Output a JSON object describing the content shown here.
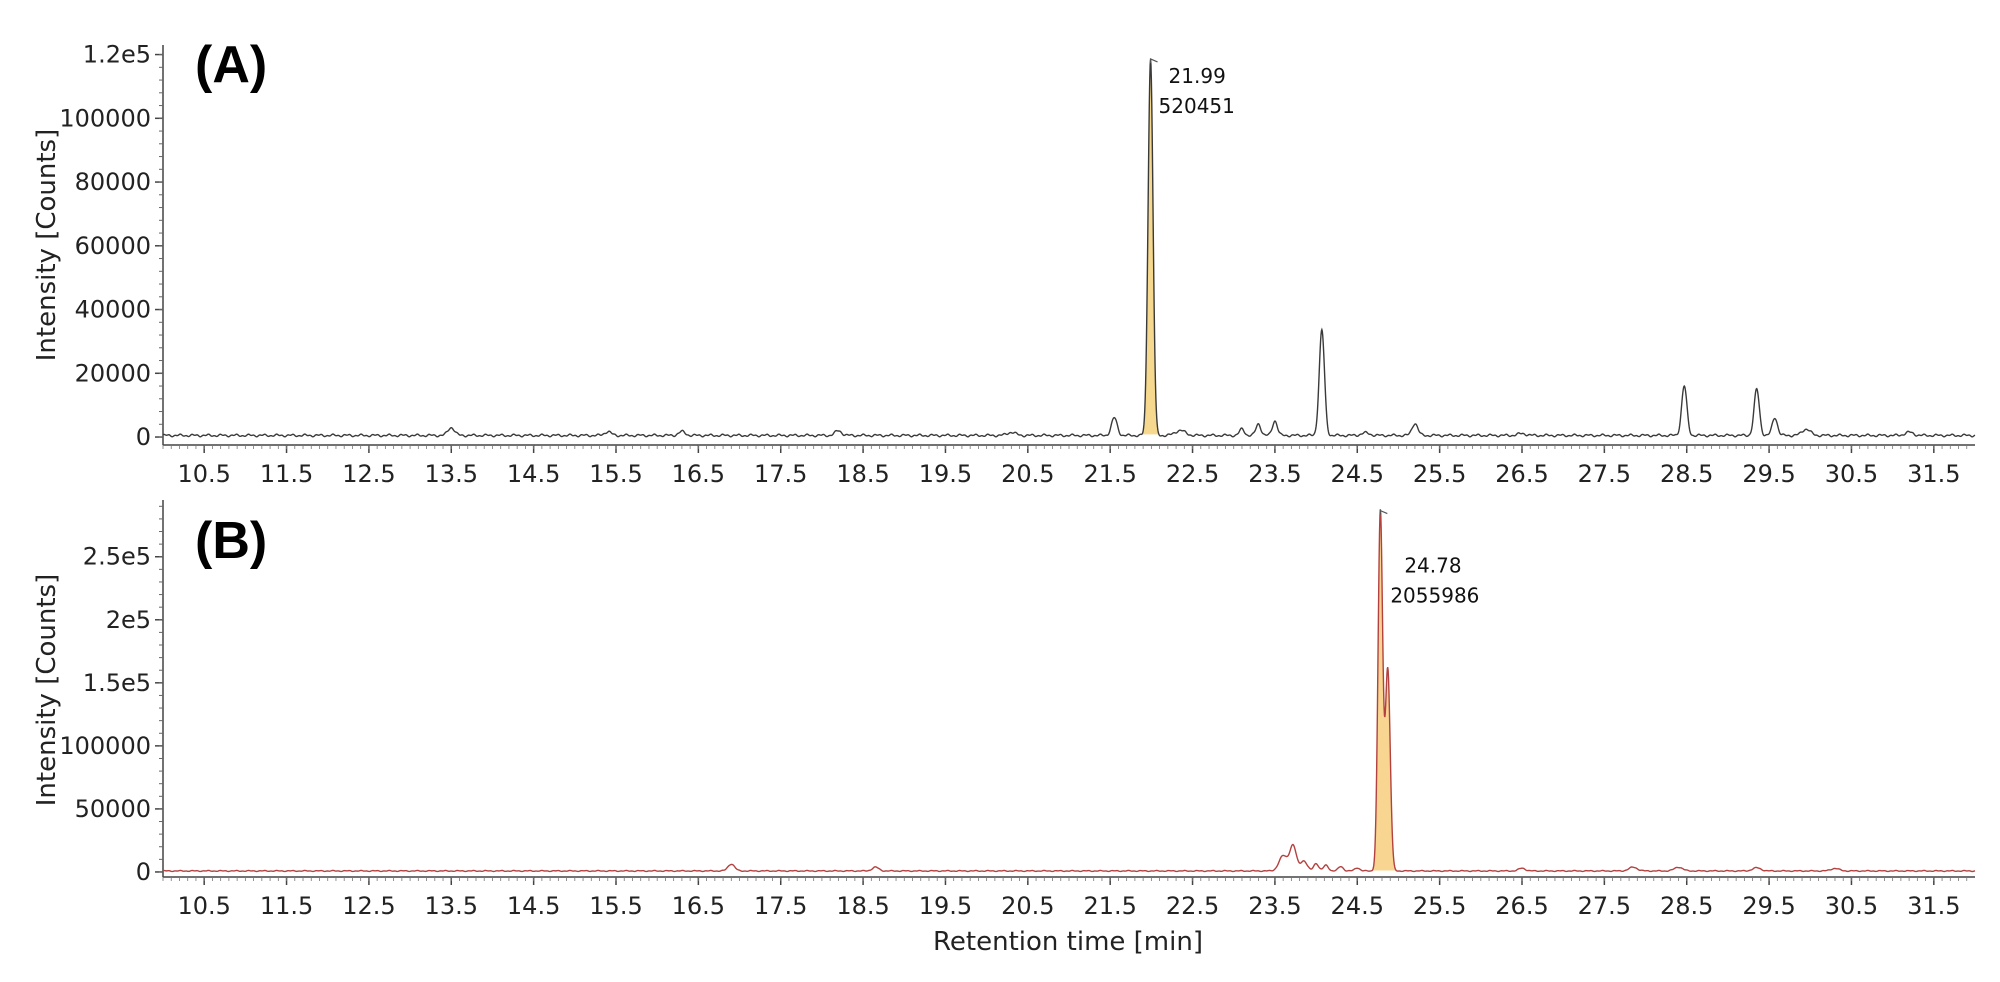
{
  "chart_data": [
    {
      "type": "line",
      "panel_label": "(A)",
      "ylabel": "Intensity [Counts]",
      "xlabel": "",
      "xlim": [
        10.0,
        32.0
      ],
      "ylim": [
        -2500,
        123000
      ],
      "yticks": [
        0,
        20000,
        40000,
        60000,
        80000,
        100000,
        120000
      ],
      "ytick_labels": [
        "0",
        "20000",
        "40000",
        "60000",
        "80000",
        "100000",
        "1.2e5"
      ],
      "xticks": [
        10.5,
        11.5,
        12.5,
        13.5,
        14.5,
        15.5,
        16.5,
        17.5,
        18.5,
        19.5,
        20.5,
        21.5,
        22.5,
        23.5,
        24.5,
        25.5,
        26.5,
        27.5,
        28.5,
        29.5,
        30.5,
        31.5
      ],
      "xtick_labels": [
        "10.5",
        "11.5",
        "12.5",
        "13.5",
        "14.5",
        "15.5",
        "16.5",
        "17.5",
        "18.5",
        "19.5",
        "20.5",
        "21.5",
        "22.5",
        "23.5",
        "24.5",
        "25.5",
        "26.5",
        "27.5",
        "28.5",
        "29.5",
        "30.5",
        "31.5"
      ],
      "line_color": "#3a3a3a",
      "fill_color": "#f5d27a",
      "baseline": 500,
      "peaks": [
        {
          "x": 13.5,
          "h": 2500,
          "w": 0.04
        },
        {
          "x": 15.4,
          "h": 1200,
          "w": 0.04
        },
        {
          "x": 16.3,
          "h": 1200,
          "w": 0.04
        },
        {
          "x": 18.2,
          "h": 1500,
          "w": 0.04
        },
        {
          "x": 20.3,
          "h": 1000,
          "w": 0.05
        },
        {
          "x": 21.55,
          "h": 5500,
          "w": 0.035
        },
        {
          "x": 21.99,
          "h": 118000,
          "w": 0.03
        },
        {
          "x": 22.35,
          "h": 1600,
          "w": 0.06
        },
        {
          "x": 23.1,
          "h": 2000,
          "w": 0.03
        },
        {
          "x": 23.3,
          "h": 3600,
          "w": 0.03
        },
        {
          "x": 23.5,
          "h": 4600,
          "w": 0.03
        },
        {
          "x": 24.07,
          "h": 33000,
          "w": 0.032
        },
        {
          "x": 24.6,
          "h": 800,
          "w": 0.05
        },
        {
          "x": 25.2,
          "h": 3800,
          "w": 0.035
        },
        {
          "x": 26.5,
          "h": 600,
          "w": 0.05
        },
        {
          "x": 28.47,
          "h": 15500,
          "w": 0.032
        },
        {
          "x": 29.35,
          "h": 14500,
          "w": 0.032
        },
        {
          "x": 29.57,
          "h": 5600,
          "w": 0.032
        },
        {
          "x": 29.95,
          "h": 2000,
          "w": 0.05
        },
        {
          "x": 31.2,
          "h": 1000,
          "w": 0.05
        }
      ],
      "shaded_region": [
        21.88,
        22.1
      ],
      "annotation": {
        "time": "21.99",
        "area": "520451",
        "x": 21.99,
        "y": 118000
      }
    },
    {
      "type": "line",
      "panel_label": "(B)",
      "ylabel": "Intensity [Counts]",
      "xlabel": "Retention time [min]",
      "xlim": [
        10.0,
        32.0
      ],
      "ylim": [
        -4000,
        295000
      ],
      "yticks": [
        0,
        50000,
        100000,
        150000,
        200000,
        250000
      ],
      "ytick_labels": [
        "0",
        "50000",
        "100000",
        "1.5e5",
        "2e5",
        "2.5e5"
      ],
      "xticks": [
        10.5,
        11.5,
        12.5,
        13.5,
        14.5,
        15.5,
        16.5,
        17.5,
        18.5,
        19.5,
        20.5,
        21.5,
        22.5,
        23.5,
        24.5,
        25.5,
        26.5,
        27.5,
        28.5,
        29.5,
        30.5,
        31.5
      ],
      "xtick_labels": [
        "10.5",
        "11.5",
        "12.5",
        "13.5",
        "14.5",
        "15.5",
        "16.5",
        "17.5",
        "18.5",
        "19.5",
        "20.5",
        "21.5",
        "22.5",
        "23.5",
        "24.5",
        "25.5",
        "26.5",
        "27.5",
        "28.5",
        "29.5",
        "30.5",
        "31.5"
      ],
      "line_color": "#b3413f",
      "fill_color": "#f7cf7e",
      "baseline": 800,
      "peaks": [
        {
          "x": 16.9,
          "h": 5500,
          "w": 0.04
        },
        {
          "x": 18.65,
          "h": 3000,
          "w": 0.04
        },
        {
          "x": 23.6,
          "h": 12000,
          "w": 0.05
        },
        {
          "x": 23.72,
          "h": 20000,
          "w": 0.04
        },
        {
          "x": 23.85,
          "h": 8000,
          "w": 0.04
        },
        {
          "x": 24.0,
          "h": 6000,
          "w": 0.03
        },
        {
          "x": 24.12,
          "h": 4500,
          "w": 0.03
        },
        {
          "x": 24.3,
          "h": 3500,
          "w": 0.03
        },
        {
          "x": 24.5,
          "h": 2500,
          "w": 0.03
        },
        {
          "x": 24.78,
          "h": 285000,
          "w": 0.028
        },
        {
          "x": 24.87,
          "h": 160000,
          "w": 0.03
        },
        {
          "x": 26.5,
          "h": 2200,
          "w": 0.04
        },
        {
          "x": 27.85,
          "h": 3000,
          "w": 0.05
        },
        {
          "x": 28.4,
          "h": 3000,
          "w": 0.05
        },
        {
          "x": 29.35,
          "h": 2500,
          "w": 0.05
        },
        {
          "x": 30.3,
          "h": 2000,
          "w": 0.05
        }
      ],
      "shaded_region": [
        24.68,
        24.97
      ],
      "annotation": {
        "time": "24.78",
        "area": "2055986",
        "x": 24.78,
        "y": 285000
      }
    }
  ]
}
